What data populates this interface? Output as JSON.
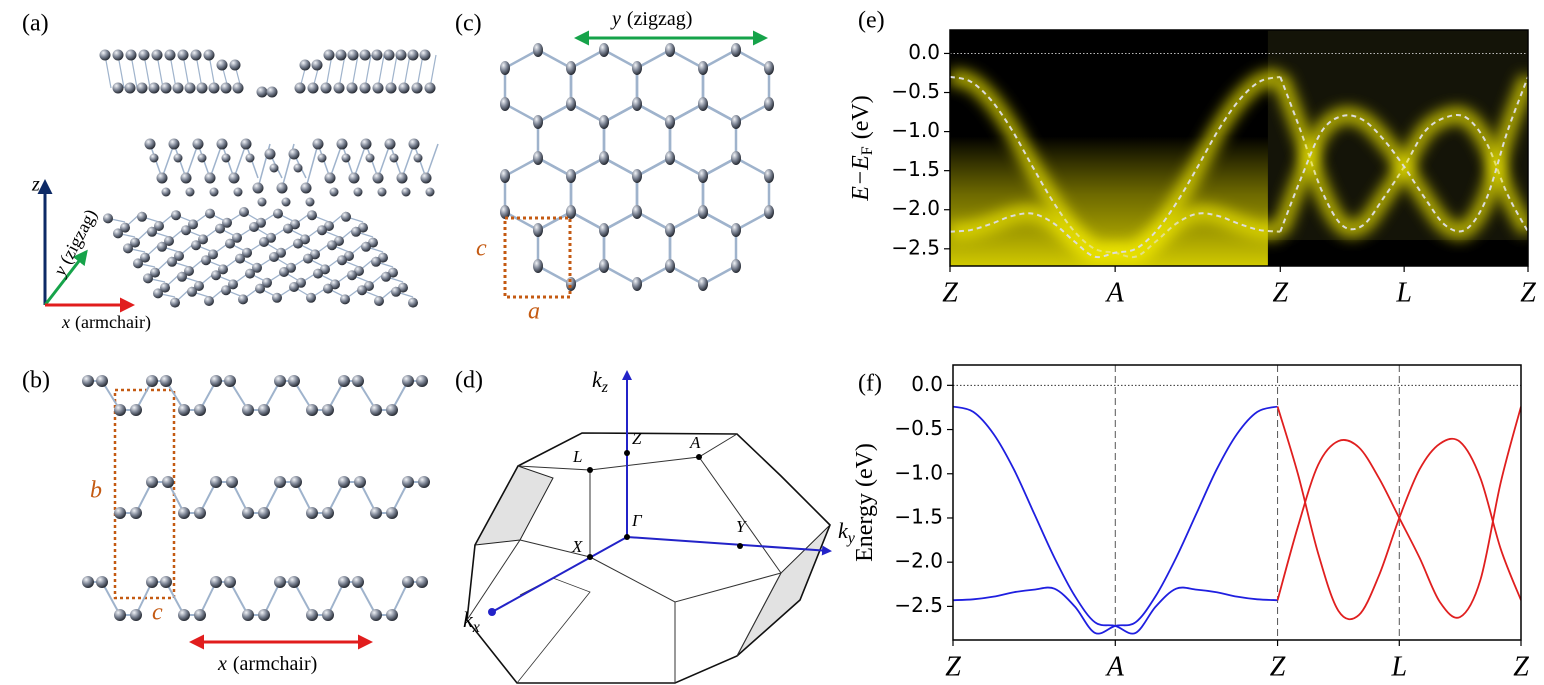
{
  "panels": {
    "a": {
      "label": "(a)",
      "z": "z",
      "y": [
        "y",
        "(zigzag)"
      ],
      "x": [
        "x",
        "(armchair)"
      ]
    },
    "b": {
      "label": "(b)",
      "b": "b",
      "c": "c",
      "x": [
        "x",
        "(armchair)"
      ]
    },
    "c": {
      "label": "(c)",
      "y": [
        "y",
        "(zigzag)"
      ],
      "c": "c",
      "a": "a"
    },
    "d": {
      "label": "(d)",
      "kz": [
        "k",
        "z"
      ],
      "ky": [
        "k",
        "y"
      ],
      "kx": [
        "k",
        "x"
      ],
      "points": [
        "Z",
        "A",
        "L",
        "Γ",
        "X",
        "Y"
      ]
    }
  },
  "chart_data": [
    {
      "type": "line",
      "panel_label": "(e)",
      "ylabel": [
        "E−E",
        "F",
        "(eV)"
      ],
      "image_background": true,
      "xlim": [
        0,
        3.5
      ],
      "ylim": [
        -2.72,
        0.3
      ],
      "hline": 0,
      "xticks": [
        {
          "value": 0,
          "label": "Z"
        },
        {
          "value": 1,
          "label": "A"
        },
        {
          "value": 2,
          "label": "Z"
        },
        {
          "value": 2.75,
          "label": "L"
        },
        {
          "value": 3.5,
          "label": "Z"
        }
      ],
      "yticks": [
        {
          "value": 0,
          "label": "0.0"
        },
        {
          "value": -0.5,
          "label": "−0.5"
        },
        {
          "value": -1,
          "label": "−1.0"
        },
        {
          "value": -1.5,
          "label": "−1.5"
        },
        {
          "value": -2,
          "label": "−2.0"
        },
        {
          "value": -2.5,
          "label": "−2.5"
        }
      ],
      "series": [
        {
          "color": "#dcdcdc",
          "linestyle": "dashed",
          "x": [
            0,
            0.125,
            0.25,
            0.375,
            0.5,
            0.625,
            0.75,
            0.875,
            1,
            1.125,
            1.25,
            1.375,
            1.5,
            1.625,
            1.75,
            1.875,
            2
          ],
          "values": [
            -0.3,
            -0.36,
            -0.6,
            -0.98,
            -1.45,
            -1.9,
            -2.27,
            -2.5,
            -2.55,
            -2.6,
            -2.4,
            -2.17,
            -2.05,
            -2.08,
            -2.18,
            -2.26,
            -2.28
          ]
        },
        {
          "color": "#dcdcdc",
          "linestyle": "dashed",
          "x": [
            0,
            0.125,
            0.25,
            0.375,
            0.5,
            0.625,
            0.75,
            0.875,
            1,
            1.125,
            1.25,
            1.375,
            1.5,
            1.625,
            1.75,
            1.875,
            2
          ],
          "values": [
            -2.28,
            -2.26,
            -2.18,
            -2.08,
            -2.05,
            -2.17,
            -2.4,
            -2.6,
            -2.55,
            -2.5,
            -2.27,
            -1.9,
            -1.45,
            -0.98,
            -0.6,
            -0.36,
            -0.3
          ]
        },
        {
          "color": "#dcdcdc",
          "linestyle": "dashed",
          "x": [
            2,
            2.125,
            2.25,
            2.375,
            2.5,
            2.625,
            2.75,
            2.875,
            3,
            3.125,
            3.25,
            3.375,
            3.5
          ],
          "values": [
            -0.3,
            -1.0,
            -1.75,
            -2.2,
            -2.2,
            -1.85,
            -1.45,
            -1.0,
            -0.82,
            -0.82,
            -1.15,
            -1.8,
            -2.28
          ]
        },
        {
          "color": "#dcdcdc",
          "linestyle": "dashed",
          "x": [
            2,
            2.125,
            2.25,
            2.375,
            2.5,
            2.625,
            2.75,
            2.875,
            3,
            3.125,
            3.25,
            3.375,
            3.5
          ],
          "values": [
            -2.28,
            -1.6,
            -1.0,
            -0.8,
            -0.85,
            -1.1,
            -1.45,
            -1.85,
            -2.2,
            -2.25,
            -1.85,
            -1.0,
            -0.3
          ]
        }
      ]
    },
    {
      "type": "line",
      "panel_label": "(f)",
      "ylabel": [
        "Energy (eV)"
      ],
      "xlim": [
        0,
        3.5
      ],
      "ylim": [
        -2.88,
        0.23
      ],
      "hline": 0,
      "vlines": [
        1,
        2,
        2.75
      ],
      "xticks": [
        {
          "value": 0,
          "label": "Z"
        },
        {
          "value": 1,
          "label": "A"
        },
        {
          "value": 2,
          "label": "Z"
        },
        {
          "value": 2.75,
          "label": "L"
        },
        {
          "value": 3.5,
          "label": "Z"
        }
      ],
      "yticks": [
        {
          "value": 0,
          "label": "0.0"
        },
        {
          "value": -0.5,
          "label": "−0.5"
        },
        {
          "value": -1,
          "label": "−1.0"
        },
        {
          "value": -1.5,
          "label": "−1.5"
        },
        {
          "value": -2,
          "label": "−2.0"
        },
        {
          "value": -2.5,
          "label": "−2.5"
        }
      ],
      "series": [
        {
          "color": "#1f1fe0",
          "x": [
            0,
            0.125,
            0.25,
            0.375,
            0.5,
            0.625,
            0.75,
            0.875,
            1,
            1.125,
            1.25,
            1.375,
            1.5,
            1.625,
            1.75,
            1.875,
            2
          ],
          "values": [
            -0.24,
            -0.3,
            -0.55,
            -0.95,
            -1.45,
            -1.95,
            -2.38,
            -2.68,
            -2.72,
            -2.8,
            -2.5,
            -2.3,
            -2.31,
            -2.34,
            -2.39,
            -2.42,
            -2.43
          ]
        },
        {
          "color": "#1f1fe0",
          "x": [
            0,
            0.125,
            0.25,
            0.375,
            0.5,
            0.625,
            0.75,
            0.875,
            1,
            1.125,
            1.25,
            1.375,
            1.5,
            1.625,
            1.75,
            1.875,
            2
          ],
          "values": [
            -2.43,
            -2.42,
            -2.39,
            -2.34,
            -2.31,
            -2.3,
            -2.5,
            -2.8,
            -2.72,
            -2.68,
            -2.38,
            -1.95,
            -1.45,
            -0.95,
            -0.55,
            -0.3,
            -0.24
          ]
        },
        {
          "color": "#e01f1f",
          "x": [
            2,
            2.125,
            2.25,
            2.375,
            2.5,
            2.625,
            2.75,
            2.875,
            3,
            3.125,
            3.25,
            3.375,
            3.5
          ],
          "values": [
            -0.24,
            -1.0,
            -1.9,
            -2.55,
            -2.6,
            -2.15,
            -1.5,
            -0.95,
            -0.66,
            -0.64,
            -1.05,
            -1.85,
            -2.43
          ]
        },
        {
          "color": "#e01f1f",
          "x": [
            2,
            2.125,
            2.25,
            2.375,
            2.5,
            2.625,
            2.75,
            2.875,
            3,
            3.125,
            3.25,
            3.375,
            3.5
          ],
          "values": [
            -2.43,
            -1.6,
            -0.9,
            -0.63,
            -0.7,
            -1.05,
            -1.5,
            -1.95,
            -2.45,
            -2.62,
            -2.2,
            -1.1,
            -0.24
          ]
        }
      ]
    }
  ]
}
